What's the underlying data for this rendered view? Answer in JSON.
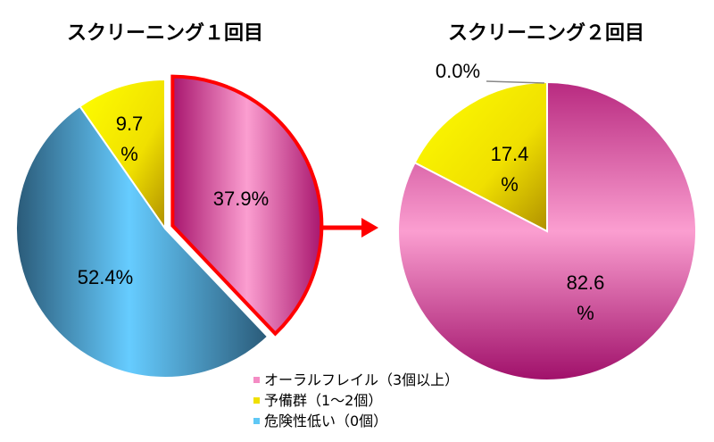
{
  "chart_data": [
    {
      "type": "pie",
      "title": "スクリーニング１回目",
      "slices": [
        {
          "name": "オーラルフレイル（3個以上）",
          "value": 37.9,
          "label": "37.9%",
          "color": "#f48cc4",
          "exploded": true,
          "highlighted": true
        },
        {
          "name": "危険性低い（0個）",
          "value": 52.4,
          "label": "52.4%",
          "color": "#5fc8f5"
        },
        {
          "name": "予備群（1～2個）",
          "value": 9.7,
          "label_line1": "9.7",
          "label_line2": "%",
          "color": "#f0e000"
        }
      ]
    },
    {
      "type": "pie",
      "title": "スクリーニング２回目",
      "slices": [
        {
          "name": "オーラルフレイル（3個以上）",
          "value": 82.6,
          "label_line1": "82.6",
          "label_line2": "%",
          "color": "#f48cc4"
        },
        {
          "name": "予備群（1～2個）",
          "value": 17.4,
          "label_line1": "17.4",
          "label_line2": "%",
          "color": "#f0e000"
        },
        {
          "name": "危険性低い（0個）",
          "value": 0.0,
          "label": "0.0%",
          "color": "#5fc8f5"
        }
      ]
    }
  ],
  "legend": {
    "placement": "bottom-center",
    "items": [
      {
        "label": "オーラルフレイル（3個以上）",
        "color": "#f48cc4"
      },
      {
        "label": "予備群（1～2個）",
        "color": "#f0e000"
      },
      {
        "label": "危険性低い（0個）",
        "color": "#5fc8f5"
      }
    ]
  },
  "arrow_color": "#ff0000"
}
